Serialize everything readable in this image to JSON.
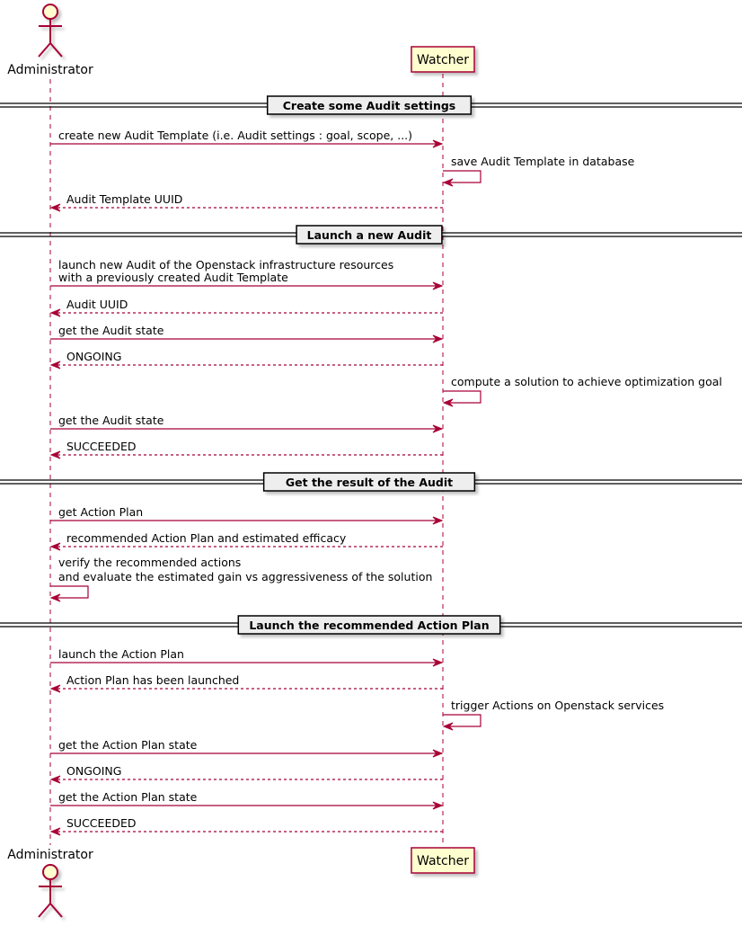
{
  "participants": [
    {
      "id": "admin",
      "name": "Administrator",
      "kind": "actor"
    },
    {
      "id": "watcher",
      "name": "Watcher",
      "kind": "participant"
    }
  ],
  "colors": {
    "line": "#A80036",
    "fill": "#FEFECE",
    "divider_fill": "#EEEEEE"
  },
  "events": [
    {
      "type": "divider",
      "label": [
        "Create some Audit settings"
      ]
    },
    {
      "type": "sync",
      "from": "admin",
      "to": "watcher",
      "label": [
        "create new Audit Template (i.e. Audit settings : goal, scope, ...)"
      ]
    },
    {
      "type": "self",
      "from": "watcher",
      "label": [
        "save Audit Template in database"
      ]
    },
    {
      "type": "return",
      "from": "watcher",
      "to": "admin",
      "label": [
        "Audit Template UUID"
      ]
    },
    {
      "type": "divider",
      "label": [
        "Launch a new Audit"
      ]
    },
    {
      "type": "sync",
      "from": "admin",
      "to": "watcher",
      "label": [
        "launch new Audit of the Openstack infrastructure resources",
        "with a previously created Audit Template"
      ]
    },
    {
      "type": "return",
      "from": "watcher",
      "to": "admin",
      "label": [
        "Audit UUID"
      ]
    },
    {
      "type": "sync",
      "from": "admin",
      "to": "watcher",
      "label": [
        "get the Audit state"
      ]
    },
    {
      "type": "return",
      "from": "watcher",
      "to": "admin",
      "label": [
        "ONGOING"
      ]
    },
    {
      "type": "self",
      "from": "watcher",
      "label": [
        "compute a solution to achieve optimization goal"
      ]
    },
    {
      "type": "sync",
      "from": "admin",
      "to": "watcher",
      "label": [
        "get the Audit state"
      ]
    },
    {
      "type": "return",
      "from": "watcher",
      "to": "admin",
      "label": [
        "SUCCEEDED"
      ]
    },
    {
      "type": "divider",
      "label": [
        "Get the result of the Audit"
      ]
    },
    {
      "type": "sync",
      "from": "admin",
      "to": "watcher",
      "label": [
        "get Action Plan"
      ]
    },
    {
      "type": "return",
      "from": "watcher",
      "to": "admin",
      "label": [
        "recommended Action Plan and estimated efficacy"
      ]
    },
    {
      "type": "self",
      "from": "admin",
      "label": [
        "verify the recommended actions",
        "and evaluate the estimated gain vs aggressiveness of the solution"
      ]
    },
    {
      "type": "divider",
      "label": [
        "Launch the recommended Action Plan"
      ]
    },
    {
      "type": "sync",
      "from": "admin",
      "to": "watcher",
      "label": [
        "launch the Action Plan"
      ]
    },
    {
      "type": "return",
      "from": "watcher",
      "to": "admin",
      "label": [
        "Action Plan has been launched"
      ]
    },
    {
      "type": "self",
      "from": "watcher",
      "label": [
        "trigger Actions on Openstack services"
      ]
    },
    {
      "type": "sync",
      "from": "admin",
      "to": "watcher",
      "label": [
        "get the Action Plan state"
      ]
    },
    {
      "type": "return",
      "from": "watcher",
      "to": "admin",
      "label": [
        "ONGOING"
      ]
    },
    {
      "type": "sync",
      "from": "admin",
      "to": "watcher",
      "label": [
        "get the Action Plan state"
      ]
    },
    {
      "type": "return",
      "from": "watcher",
      "to": "admin",
      "label": [
        "SUCCEEDED"
      ]
    }
  ]
}
